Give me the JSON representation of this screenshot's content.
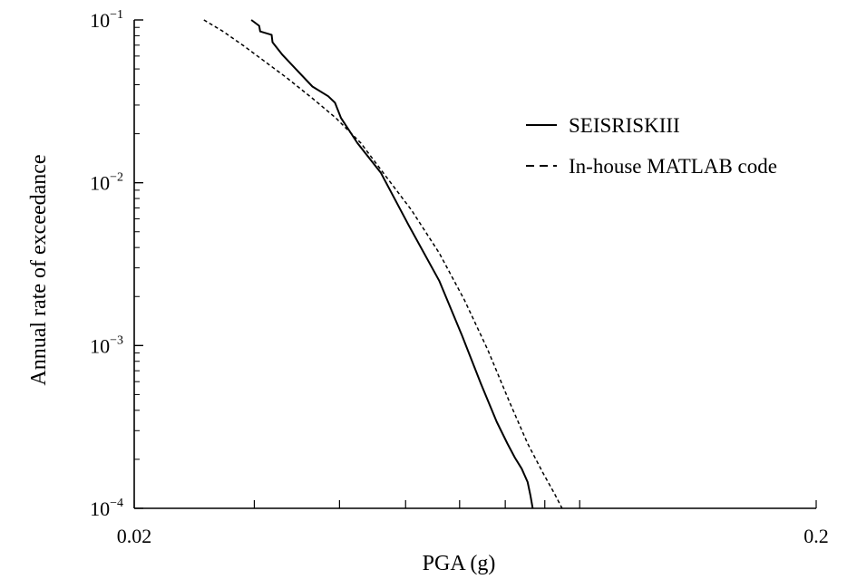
{
  "chart_data": {
    "type": "line",
    "xlabel": "PGA (g)",
    "ylabel": "Annual rate of exceedance",
    "x_scale": "log",
    "y_scale": "log",
    "xlim": [
      0.02,
      0.2
    ],
    "ylim": [
      0.0001,
      0.1
    ],
    "x_tick_labels": [
      {
        "value": 0.02,
        "label": "0.02"
      },
      {
        "value": 0.2,
        "label": "0.2"
      }
    ],
    "x_minor_ticks": [
      0.03,
      0.04,
      0.05,
      0.06,
      0.07,
      0.08,
      0.09
    ],
    "y_tick_labels": [
      {
        "value": 0.1,
        "base": "10",
        "exp": "−1"
      },
      {
        "value": 0.01,
        "base": "10",
        "exp": "−2"
      },
      {
        "value": 0.001,
        "base": "10",
        "exp": "−3"
      },
      {
        "value": 0.0001,
        "base": "10",
        "exp": "−4"
      }
    ],
    "grid": false,
    "legend_position": "right",
    "series": [
      {
        "name": "SEISRISKIII",
        "style": "solid",
        "color": "#000000",
        "x": [
          0.0297,
          0.0305,
          0.0306,
          0.0318,
          0.0319,
          0.033,
          0.0345,
          0.0365,
          0.0385,
          0.0394,
          0.0402,
          0.0425,
          0.046,
          0.0505,
          0.056,
          0.0605,
          0.0645,
          0.068,
          0.0705,
          0.0723,
          0.074,
          0.0755,
          0.0762,
          0.0768
        ],
        "y": [
          0.1,
          0.092,
          0.085,
          0.081,
          0.073,
          0.061,
          0.05,
          0.039,
          0.034,
          0.031,
          0.025,
          0.0175,
          0.0115,
          0.0055,
          0.0025,
          0.00115,
          0.00058,
          0.00034,
          0.00025,
          0.000205,
          0.000175,
          0.000145,
          0.00012,
          0.0001
        ]
      },
      {
        "name": "In-house MATLAB code",
        "style": "dashed",
        "color": "#000000",
        "x": [
          0.0253,
          0.027,
          0.029,
          0.031,
          0.0335,
          0.0365,
          0.0395,
          0.043,
          0.0465,
          0.051,
          0.056,
          0.061,
          0.066,
          0.071,
          0.0755,
          0.0795,
          0.0825,
          0.0848
        ],
        "y": [
          0.1,
          0.085,
          0.069,
          0.056,
          0.044,
          0.033,
          0.025,
          0.0175,
          0.0113,
          0.0068,
          0.0037,
          0.0019,
          0.00094,
          0.00045,
          0.00025,
          0.000165,
          0.000125,
          0.0001
        ]
      }
    ]
  }
}
